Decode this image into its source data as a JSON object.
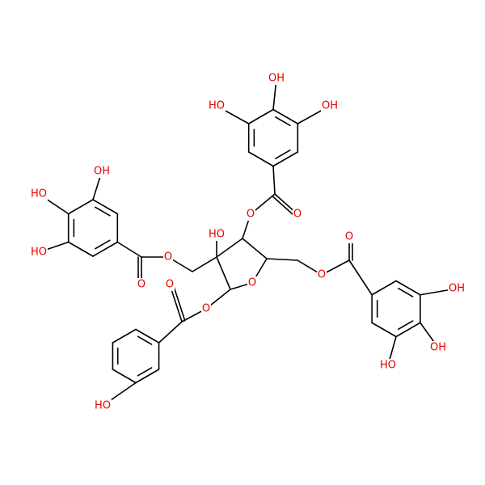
{
  "atom_labels": [
    "OH",
    "HO",
    "OH",
    "O",
    "O",
    "OH",
    "HO",
    "HO",
    "O",
    "O",
    "HO",
    "O",
    "O",
    "O",
    "HO",
    "O",
    "O",
    "OH",
    "OH",
    "HO"
  ]
}
